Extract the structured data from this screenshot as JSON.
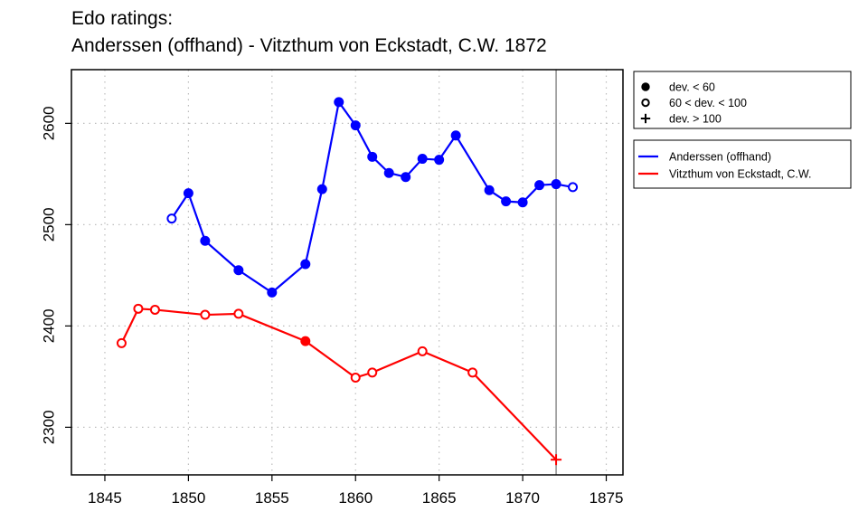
{
  "title": {
    "line1": "Edo ratings:",
    "line2": "Anderssen (offhand) - Vitzthum von Eckstadt, C.W. 1872"
  },
  "chart_data": {
    "type": "line",
    "xlim": [
      1843,
      1876
    ],
    "ylim": [
      2253,
      2653
    ],
    "x_ticks": [
      1845,
      1850,
      1855,
      1860,
      1865,
      1870,
      1875
    ],
    "y_ticks": [
      2300,
      2400,
      2500,
      2600
    ],
    "grid": true,
    "marker_vline_x": 1872,
    "marker_legend": [
      {
        "symbol": "filled-circle",
        "label": "dev. < 60"
      },
      {
        "symbol": "open-circle",
        "label": "60 < dev. < 100"
      },
      {
        "symbol": "plus",
        "label": "dev. > 100"
      }
    ],
    "series": [
      {
        "name": "Anderssen (offhand)",
        "color": "#0000ff",
        "points": [
          {
            "x": 1849,
            "y": 2506,
            "m": "open"
          },
          {
            "x": 1850,
            "y": 2531,
            "m": "filled"
          },
          {
            "x": 1851,
            "y": 2484,
            "m": "filled"
          },
          {
            "x": 1853,
            "y": 2455,
            "m": "filled"
          },
          {
            "x": 1855,
            "y": 2433,
            "m": "filled"
          },
          {
            "x": 1857,
            "y": 2461,
            "m": "filled"
          },
          {
            "x": 1858,
            "y": 2535,
            "m": "filled"
          },
          {
            "x": 1859,
            "y": 2621,
            "m": "filled"
          },
          {
            "x": 1860,
            "y": 2598,
            "m": "filled"
          },
          {
            "x": 1861,
            "y": 2567,
            "m": "filled"
          },
          {
            "x": 1862,
            "y": 2551,
            "m": "filled"
          },
          {
            "x": 1863,
            "y": 2547,
            "m": "filled"
          },
          {
            "x": 1864,
            "y": 2565,
            "m": "filled"
          },
          {
            "x": 1865,
            "y": 2564,
            "m": "filled"
          },
          {
            "x": 1866,
            "y": 2588,
            "m": "filled"
          },
          {
            "x": 1868,
            "y": 2534,
            "m": "filled"
          },
          {
            "x": 1869,
            "y": 2523,
            "m": "filled"
          },
          {
            "x": 1870,
            "y": 2522,
            "m": "filled"
          },
          {
            "x": 1871,
            "y": 2539,
            "m": "filled"
          },
          {
            "x": 1872,
            "y": 2540,
            "m": "filled"
          },
          {
            "x": 1873,
            "y": 2537,
            "m": "open"
          }
        ]
      },
      {
        "name": "Vitzthum von Eckstadt, C.W.",
        "color": "#ff0000",
        "points": [
          {
            "x": 1846,
            "y": 2383,
            "m": "open"
          },
          {
            "x": 1847,
            "y": 2417,
            "m": "open"
          },
          {
            "x": 1848,
            "y": 2416,
            "m": "open"
          },
          {
            "x": 1851,
            "y": 2411,
            "m": "open"
          },
          {
            "x": 1853,
            "y": 2412,
            "m": "open"
          },
          {
            "x": 1857,
            "y": 2385,
            "m": "filled"
          },
          {
            "x": 1860,
            "y": 2349,
            "m": "open"
          },
          {
            "x": 1861,
            "y": 2354,
            "m": "open"
          },
          {
            "x": 1864,
            "y": 2375,
            "m": "open"
          },
          {
            "x": 1867,
            "y": 2354,
            "m": "open"
          },
          {
            "x": 1872,
            "y": 2268,
            "m": "plus"
          }
        ]
      }
    ]
  }
}
